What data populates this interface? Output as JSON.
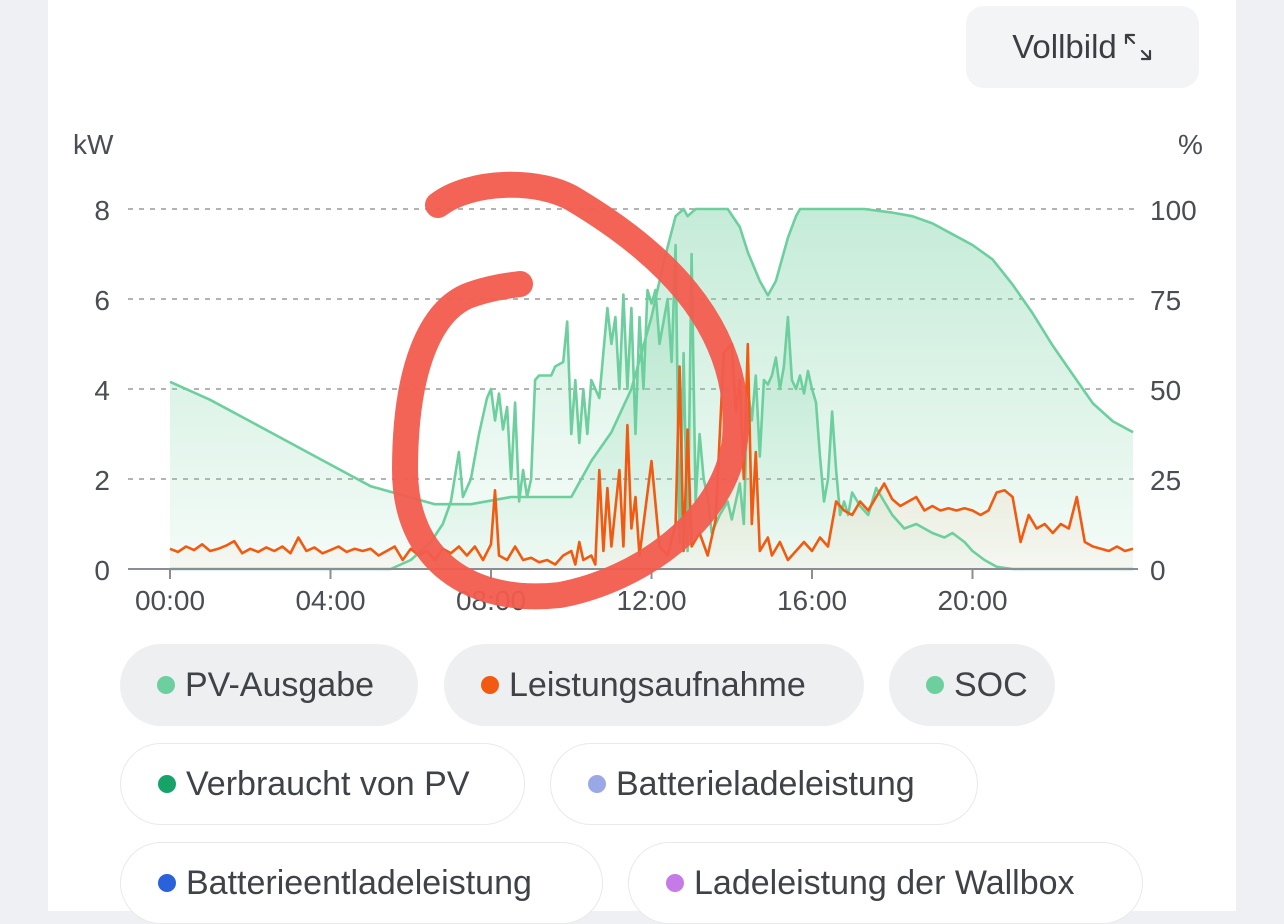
{
  "toolbar": {
    "fullscreen_label": "Vollbild"
  },
  "icons": {
    "fullscreen": "expand-arrows-icon"
  },
  "colors": {
    "pv": "#6dcf9e",
    "consumption": "#f15a10",
    "soc": "#6dcf9e",
    "grid": "#9a9a9a",
    "annotation": "#f25c4e"
  },
  "chart_data": {
    "type": "line",
    "left_axis_unit": "kW",
    "right_axis_unit": "%",
    "x_ticks": [
      "00:00",
      "04:00",
      "08:00",
      "12:00",
      "16:00",
      "20:00"
    ],
    "x_range_hours": [
      0,
      24
    ],
    "ylim_left": [
      0,
      8
    ],
    "ylim_right": [
      0,
      100
    ],
    "y_ticks_left": [
      "0",
      "2",
      "4",
      "6",
      "8"
    ],
    "y_ticks_right": [
      "0",
      "25",
      "50",
      "75",
      "100"
    ],
    "grid": true,
    "series": [
      {
        "name": "PV-Ausgabe",
        "axis": "left",
        "unit": "kW",
        "points": [
          [
            0,
            0
          ],
          [
            5.5,
            0
          ],
          [
            6.0,
            0.2
          ],
          [
            6.5,
            0.6
          ],
          [
            6.8,
            1.0
          ],
          [
            7.0,
            1.5
          ],
          [
            7.2,
            2.6
          ],
          [
            7.3,
            1.6
          ],
          [
            7.5,
            2.0
          ],
          [
            7.7,
            3.0
          ],
          [
            7.9,
            3.8
          ],
          [
            8.0,
            4.0
          ],
          [
            8.1,
            3.3
          ],
          [
            8.2,
            3.9
          ],
          [
            8.3,
            3.1
          ],
          [
            8.4,
            3.6
          ],
          [
            8.5,
            2.0
          ],
          [
            8.6,
            3.7
          ],
          [
            8.7,
            1.5
          ],
          [
            8.8,
            2.2
          ],
          [
            8.9,
            1.6
          ],
          [
            9.0,
            2.0
          ],
          [
            9.1,
            4.2
          ],
          [
            9.2,
            4.3
          ],
          [
            9.5,
            4.3
          ],
          [
            9.6,
            4.5
          ],
          [
            9.8,
            4.6
          ],
          [
            9.9,
            5.5
          ],
          [
            10.0,
            3.0
          ],
          [
            10.1,
            4.2
          ],
          [
            10.2,
            2.8
          ],
          [
            10.3,
            4.0
          ],
          [
            10.4,
            3.0
          ],
          [
            10.5,
            4.2
          ],
          [
            10.7,
            3.8
          ],
          [
            10.9,
            5.8
          ],
          [
            11.0,
            5.0
          ],
          [
            11.1,
            5.6
          ],
          [
            11.2,
            4.0
          ],
          [
            11.3,
            6.1
          ],
          [
            11.4,
            4.0
          ],
          [
            11.5,
            5.8
          ],
          [
            11.6,
            3.0
          ],
          [
            11.7,
            5.6
          ],
          [
            11.8,
            4.0
          ],
          [
            11.9,
            6.2
          ],
          [
            12.0,
            5.9
          ],
          [
            12.1,
            6.2
          ],
          [
            12.2,
            5.0
          ],
          [
            12.4,
            6.0
          ],
          [
            12.5,
            4.6
          ],
          [
            12.6,
            7.2
          ],
          [
            12.7,
            0.6
          ],
          [
            12.8,
            4.8
          ],
          [
            12.9,
            0.4
          ],
          [
            13.0,
            7.0
          ],
          [
            13.1,
            1.5
          ],
          [
            13.2,
            3.0
          ],
          [
            13.3,
            2.0
          ],
          [
            13.4,
            1.6
          ],
          [
            13.5,
            0.8
          ],
          [
            13.7,
            1.2
          ],
          [
            13.9,
            1.5
          ],
          [
            14.0,
            1.1
          ],
          [
            14.2,
            1.9
          ],
          [
            14.3,
            1.0
          ],
          [
            14.4,
            4.0
          ],
          [
            14.5,
            3.3
          ],
          [
            14.6,
            4.3
          ],
          [
            14.7,
            2.5
          ],
          [
            14.8,
            4.2
          ],
          [
            14.9,
            4.1
          ],
          [
            15.0,
            4.3
          ],
          [
            15.1,
            4.7
          ],
          [
            15.2,
            4.0
          ],
          [
            15.3,
            4.5
          ],
          [
            15.4,
            5.6
          ],
          [
            15.5,
            4.2
          ],
          [
            15.6,
            4.0
          ],
          [
            15.7,
            4.3
          ],
          [
            15.8,
            3.9
          ],
          [
            15.9,
            4.4
          ],
          [
            16.0,
            4.0
          ],
          [
            16.1,
            3.7
          ],
          [
            16.2,
            2.5
          ],
          [
            16.3,
            1.5
          ],
          [
            16.4,
            2.0
          ],
          [
            16.5,
            3.5
          ],
          [
            16.6,
            2.2
          ],
          [
            16.7,
            1.2
          ],
          [
            16.8,
            1.5
          ],
          [
            16.9,
            1.2
          ],
          [
            17.0,
            1.7
          ],
          [
            17.2,
            1.4
          ],
          [
            17.4,
            1.2
          ],
          [
            17.6,
            1.8
          ],
          [
            17.8,
            1.5
          ],
          [
            18.0,
            1.2
          ],
          [
            18.3,
            0.9
          ],
          [
            18.6,
            1.0
          ],
          [
            19.0,
            0.8
          ],
          [
            19.3,
            0.7
          ],
          [
            19.5,
            0.8
          ],
          [
            19.8,
            0.6
          ],
          [
            20.0,
            0.4
          ],
          [
            20.3,
            0.2
          ],
          [
            20.6,
            0.05
          ],
          [
            21.0,
            0
          ],
          [
            24,
            0
          ]
        ]
      },
      {
        "name": "Leistungsaufnahme",
        "axis": "left",
        "unit": "kW",
        "points": [
          [
            0,
            0.45
          ],
          [
            0.2,
            0.38
          ],
          [
            0.4,
            0.5
          ],
          [
            0.6,
            0.42
          ],
          [
            0.8,
            0.55
          ],
          [
            1.0,
            0.4
          ],
          [
            1.2,
            0.45
          ],
          [
            1.4,
            0.52
          ],
          [
            1.6,
            0.62
          ],
          [
            1.8,
            0.35
          ],
          [
            2.0,
            0.45
          ],
          [
            2.2,
            0.38
          ],
          [
            2.4,
            0.48
          ],
          [
            2.6,
            0.4
          ],
          [
            2.8,
            0.5
          ],
          [
            3.0,
            0.35
          ],
          [
            3.2,
            0.7
          ],
          [
            3.4,
            0.4
          ],
          [
            3.6,
            0.48
          ],
          [
            3.8,
            0.35
          ],
          [
            4.0,
            0.42
          ],
          [
            4.2,
            0.5
          ],
          [
            4.4,
            0.38
          ],
          [
            4.6,
            0.45
          ],
          [
            4.8,
            0.4
          ],
          [
            5.0,
            0.45
          ],
          [
            5.2,
            0.3
          ],
          [
            5.4,
            0.4
          ],
          [
            5.6,
            0.5
          ],
          [
            5.8,
            0.2
          ],
          [
            6.0,
            0.45
          ],
          [
            6.2,
            0.3
          ],
          [
            6.4,
            0.4
          ],
          [
            6.6,
            0.2
          ],
          [
            6.8,
            0.45
          ],
          [
            7.0,
            0.35
          ],
          [
            7.2,
            0.5
          ],
          [
            7.4,
            0.3
          ],
          [
            7.6,
            0.5
          ],
          [
            7.8,
            0.2
          ],
          [
            8.0,
            0.55
          ],
          [
            8.1,
            1.75
          ],
          [
            8.2,
            0.3
          ],
          [
            8.4,
            0.2
          ],
          [
            8.6,
            0.5
          ],
          [
            8.8,
            0.2
          ],
          [
            9.0,
            0.25
          ],
          [
            9.2,
            0.15
          ],
          [
            9.4,
            0.2
          ],
          [
            9.6,
            0.1
          ],
          [
            9.8,
            0.3
          ],
          [
            10.0,
            0.4
          ],
          [
            10.1,
            0.1
          ],
          [
            10.2,
            0.6
          ],
          [
            10.3,
            0.2
          ],
          [
            10.5,
            0.3
          ],
          [
            10.6,
            0.1
          ],
          [
            10.7,
            2.2
          ],
          [
            10.8,
            0.4
          ],
          [
            10.9,
            1.8
          ],
          [
            11.0,
            0.5
          ],
          [
            11.2,
            2.2
          ],
          [
            11.3,
            0.5
          ],
          [
            11.4,
            3.2
          ],
          [
            11.5,
            0.9
          ],
          [
            11.6,
            1.6
          ],
          [
            11.7,
            0.3
          ],
          [
            11.8,
            1.0
          ],
          [
            12.0,
            2.4
          ],
          [
            12.2,
            0.5
          ],
          [
            12.4,
            0.3
          ],
          [
            12.6,
            1.0
          ],
          [
            12.7,
            4.5
          ],
          [
            12.8,
            0.4
          ],
          [
            12.9,
            3.1
          ],
          [
            13.0,
            0.5
          ],
          [
            13.2,
            0.8
          ],
          [
            13.4,
            0.3
          ],
          [
            13.6,
            1.1
          ],
          [
            13.8,
            4.8
          ],
          [
            14.0,
            5.0
          ],
          [
            14.1,
            3.5
          ],
          [
            14.2,
            4.2
          ],
          [
            14.3,
            2.0
          ],
          [
            14.4,
            5.0
          ],
          [
            14.5,
            1.0
          ],
          [
            14.6,
            2.6
          ],
          [
            14.7,
            0.4
          ],
          [
            14.9,
            0.7
          ],
          [
            15.0,
            0.3
          ],
          [
            15.2,
            0.6
          ],
          [
            15.4,
            0.2
          ],
          [
            15.6,
            0.4
          ],
          [
            15.8,
            0.6
          ],
          [
            16.0,
            0.4
          ],
          [
            16.2,
            0.7
          ],
          [
            16.4,
            0.5
          ],
          [
            16.6,
            1.5
          ],
          [
            16.8,
            1.3
          ],
          [
            17.0,
            1.2
          ],
          [
            17.2,
            1.5
          ],
          [
            17.4,
            1.3
          ],
          [
            17.6,
            1.6
          ],
          [
            17.8,
            1.9
          ],
          [
            18.0,
            1.55
          ],
          [
            18.2,
            1.4
          ],
          [
            18.4,
            1.5
          ],
          [
            18.6,
            1.6
          ],
          [
            18.8,
            1.3
          ],
          [
            19.0,
            1.4
          ],
          [
            19.2,
            1.3
          ],
          [
            19.4,
            1.35
          ],
          [
            19.6,
            1.3
          ],
          [
            19.8,
            1.35
          ],
          [
            20.0,
            1.3
          ],
          [
            20.2,
            1.2
          ],
          [
            20.4,
            1.3
          ],
          [
            20.6,
            1.7
          ],
          [
            20.8,
            1.75
          ],
          [
            21.0,
            1.6
          ],
          [
            21.2,
            0.6
          ],
          [
            21.4,
            1.2
          ],
          [
            21.6,
            0.9
          ],
          [
            21.8,
            1.0
          ],
          [
            22.0,
            0.8
          ],
          [
            22.2,
            1.0
          ],
          [
            22.4,
            0.9
          ],
          [
            22.6,
            1.6
          ],
          [
            22.8,
            0.6
          ],
          [
            23.0,
            0.5
          ],
          [
            23.4,
            0.4
          ],
          [
            23.6,
            0.5
          ],
          [
            23.8,
            0.4
          ],
          [
            24.0,
            0.45
          ]
        ]
      },
      {
        "name": "SOC",
        "axis": "right",
        "unit": "%",
        "points": [
          [
            0,
            52
          ],
          [
            1,
            47
          ],
          [
            2,
            41
          ],
          [
            3,
            35
          ],
          [
            4,
            29
          ],
          [
            5,
            23
          ],
          [
            6.6,
            18
          ],
          [
            7.5,
            18
          ],
          [
            8.5,
            20
          ],
          [
            9.5,
            20
          ],
          [
            10.0,
            20
          ],
          [
            10.5,
            30
          ],
          [
            11,
            38
          ],
          [
            11.5,
            50
          ],
          [
            12.0,
            70
          ],
          [
            12.3,
            85
          ],
          [
            12.6,
            98
          ],
          [
            12.8,
            100
          ],
          [
            12.9,
            98
          ],
          [
            13.1,
            100
          ],
          [
            13.9,
            100
          ],
          [
            14.2,
            95
          ],
          [
            14.4,
            88
          ],
          [
            14.7,
            80
          ],
          [
            14.9,
            76
          ],
          [
            15.1,
            80
          ],
          [
            15.4,
            92
          ],
          [
            15.6,
            98
          ],
          [
            15.7,
            100
          ],
          [
            17.3,
            100
          ],
          [
            18.0,
            99
          ],
          [
            18.5,
            98
          ],
          [
            19.0,
            96
          ],
          [
            19.5,
            93
          ],
          [
            20.0,
            90
          ],
          [
            20.5,
            86
          ],
          [
            21.0,
            79
          ],
          [
            21.5,
            71
          ],
          [
            22.0,
            62
          ],
          [
            22.5,
            54
          ],
          [
            23.0,
            46
          ],
          [
            23.5,
            41
          ],
          [
            24.0,
            38
          ]
        ]
      }
    ]
  },
  "legend": [
    {
      "label": "PV-Ausgabe",
      "color": "#6dcf9e",
      "active": true
    },
    {
      "label": "Leistungsaufnahme",
      "color": "#f15a10",
      "active": true
    },
    {
      "label": "SOC",
      "color": "#6dcf9e",
      "active": true
    },
    {
      "label": "Verbraucht von PV",
      "color": "#16a36a",
      "active": false
    },
    {
      "label": "Batterieladeleistung",
      "color": "#9aa9e6",
      "active": false
    },
    {
      "label": "Batterieentladeleistung",
      "color": "#2a62db",
      "active": false
    },
    {
      "label": "Ladeleistung der Wallbox",
      "color": "#c67ae8",
      "active": false
    }
  ]
}
